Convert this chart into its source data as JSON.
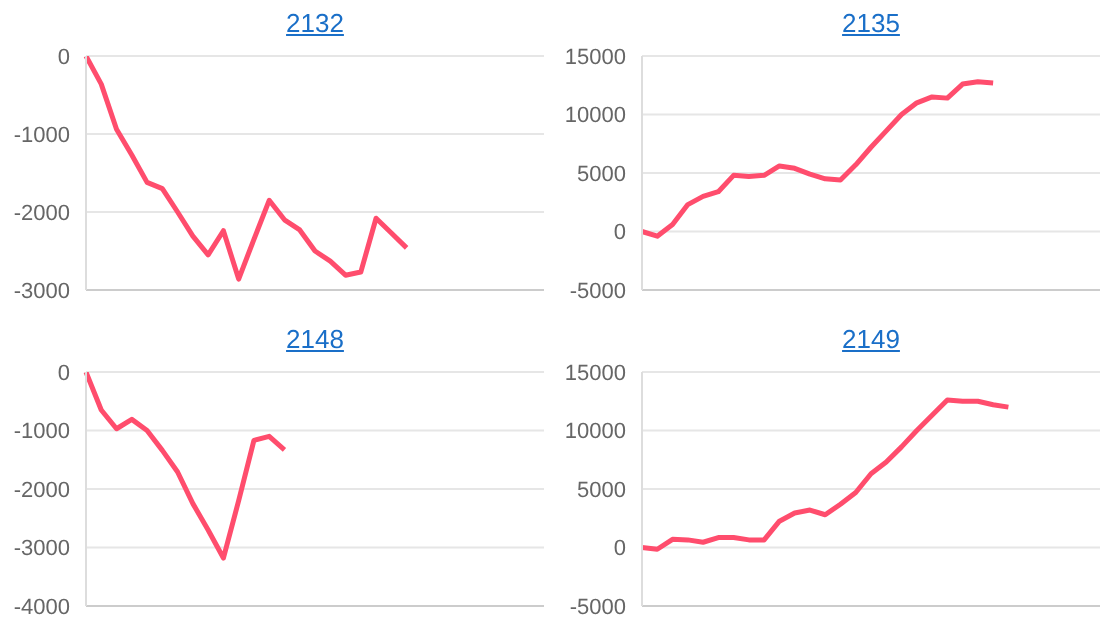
{
  "chart_data": [
    {
      "type": "line",
      "title": "2132",
      "categories": [
        null,
        null,
        null,
        null,
        null,
        null,
        null,
        null,
        null,
        null,
        null,
        null,
        null,
        null,
        null,
        null,
        null,
        null,
        null,
        null,
        null,
        null,
        null,
        null,
        null,
        null,
        null,
        null,
        null,
        null,
        null
      ],
      "series": [
        {
          "color": "#ff4d6d",
          "values": [
            0,
            -360,
            -940,
            -1270,
            -1620,
            -1700,
            -2000,
            -2310,
            -2550,
            -2240,
            -2860,
            -2350,
            -1850,
            -2100,
            -2230,
            -2500,
            -2630,
            -2810,
            -2770,
            -2080,
            -2270,
            -2460,
            null,
            null,
            null,
            null,
            null,
            null,
            null,
            null,
            null
          ]
        }
      ],
      "ylim": [
        -3000,
        0
      ],
      "yticks": [
        -3000,
        -2000,
        -1000,
        0
      ],
      "grid": "y",
      "tick_labels": "y"
    },
    {
      "type": "line",
      "title": "2135",
      "categories": [
        null,
        null,
        null,
        null,
        null,
        null,
        null,
        null,
        null,
        null,
        null,
        null,
        null,
        null,
        null,
        null,
        null,
        null,
        null,
        null,
        null,
        null,
        null,
        null,
        null,
        null,
        null,
        null,
        null,
        null,
        null
      ],
      "series": [
        {
          "color": "#ff4d6d",
          "values": [
            0,
            -400,
            600,
            2300,
            3000,
            3400,
            4800,
            4700,
            4800,
            5600,
            5400,
            4900,
            4500,
            4400,
            5700,
            7200,
            8600,
            10000,
            11000,
            11500,
            11400,
            12600,
            12800,
            12700,
            null,
            null,
            null,
            null,
            null,
            null,
            null
          ]
        }
      ],
      "ylim": [
        -5000,
        15000
      ],
      "yticks": [
        -5000,
        0,
        5000,
        10000,
        15000
      ],
      "grid": "y",
      "tick_labels": "y"
    },
    {
      "type": "line",
      "title": "2148",
      "categories": [
        null,
        null,
        null,
        null,
        null,
        null,
        null,
        null,
        null,
        null,
        null,
        null,
        null,
        null,
        null,
        null,
        null,
        null,
        null,
        null,
        null,
        null,
        null,
        null,
        null,
        null,
        null,
        null,
        null,
        null,
        null
      ],
      "series": [
        {
          "color": "#ff4d6d",
          "values": [
            0,
            -650,
            -970,
            -810,
            -1000,
            -1340,
            -1710,
            -2250,
            -2700,
            -3180,
            -2200,
            -1170,
            -1100,
            -1330,
            null,
            null,
            null,
            null,
            null,
            null,
            null,
            null,
            null,
            null,
            null,
            null,
            null,
            null,
            null,
            null,
            null
          ]
        }
      ],
      "ylim": [
        -4000,
        0
      ],
      "yticks": [
        -4000,
        -3000,
        -2000,
        -1000,
        0
      ],
      "grid": "y",
      "tick_labels": "y"
    },
    {
      "type": "line",
      "title": "2149",
      "categories": [
        null,
        null,
        null,
        null,
        null,
        null,
        null,
        null,
        null,
        null,
        null,
        null,
        null,
        null,
        null,
        null,
        null,
        null,
        null,
        null,
        null,
        null,
        null,
        null,
        null,
        null,
        null,
        null,
        null,
        null,
        null
      ],
      "series": [
        {
          "color": "#ff4d6d",
          "values": [
            0,
            -150,
            700,
            650,
            450,
            850,
            850,
            650,
            650,
            2250,
            2950,
            3200,
            2800,
            3700,
            4700,
            6300,
            7300,
            8600,
            10000,
            11300,
            12600,
            12500,
            12500,
            12200,
            12000,
            null,
            null,
            null,
            null,
            null,
            null
          ]
        }
      ],
      "ylim": [
        -5000,
        15000
      ],
      "yticks": [
        -5000,
        0,
        5000,
        10000,
        15000
      ],
      "grid": "y",
      "tick_labels": "y"
    }
  ]
}
